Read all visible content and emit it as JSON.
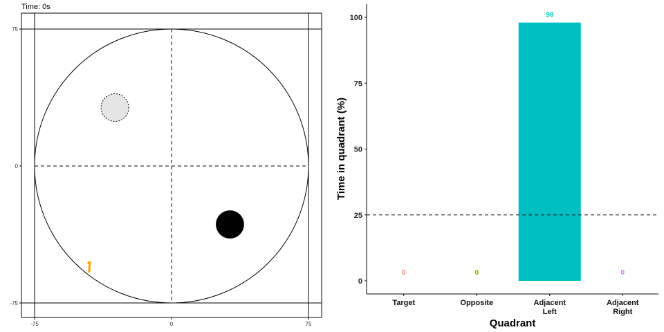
{
  "time_label": "Time: 0s",
  "colors": {
    "target": "#F8766D",
    "opposite": "#7CAE00",
    "adjacent_left": "#00BFC4",
    "adjacent_right": "#C77CFF",
    "path": "#FFA500",
    "platform_fill": "#E5E5E5",
    "start_marker": "#000000"
  },
  "chart_data": [
    {
      "type": "scatter",
      "title": "",
      "xlim": [
        -75,
        75
      ],
      "ylim": [
        -75,
        75
      ],
      "x_ticks": [
        -75,
        0,
        75
      ],
      "y_ticks": [
        -75,
        0,
        75
      ],
      "x_tick_labels": [
        "-75",
        "0",
        "75"
      ],
      "y_tick_labels": [
        "-75",
        "0",
        "75"
      ],
      "pool_radius": 75,
      "quadrant_dividers": "dashed lines at x=0 and y=0",
      "platform": {
        "x": -31,
        "y": 32,
        "radius": 7.5,
        "style": "dashed outline, light grey fill"
      },
      "start_marker": {
        "x": 32,
        "y": -32,
        "radius": 7.5,
        "color": "#000000"
      },
      "path_points": [
        {
          "x": -45.5,
          "y": -53.2
        },
        {
          "x": -44.8,
          "y": -52.6
        },
        {
          "x": -44.6,
          "y": -53.6
        },
        {
          "x": -44.9,
          "y": -54.6
        },
        {
          "x": -45.1,
          "y": -55.6
        },
        {
          "x": -44.9,
          "y": -56.6
        },
        {
          "x": -45.2,
          "y": -57.8
        }
      ]
    },
    {
      "type": "bar",
      "title": "",
      "xlabel": "Quadrant",
      "ylabel": "Time in quadrant (%)",
      "categories": [
        "Target",
        "Opposite",
        "Adjacent Left",
        "Adjacent Right"
      ],
      "category_labels": [
        [
          "Target"
        ],
        [
          "Opposite"
        ],
        [
          "Adjacent",
          "Left"
        ],
        [
          "Adjacent",
          "Right"
        ]
      ],
      "values": [
        0,
        0,
        98,
        0
      ],
      "data_labels": [
        "0",
        "0",
        "98",
        "0"
      ],
      "ylim": [
        0,
        105
      ],
      "y_ticks": [
        0,
        25,
        50,
        75,
        100
      ],
      "y_tick_labels": [
        "0",
        "25",
        "50",
        "75",
        "100"
      ],
      "reference_line": {
        "y": 25,
        "style": "dashed"
      },
      "grid": false,
      "legend": "none"
    }
  ]
}
